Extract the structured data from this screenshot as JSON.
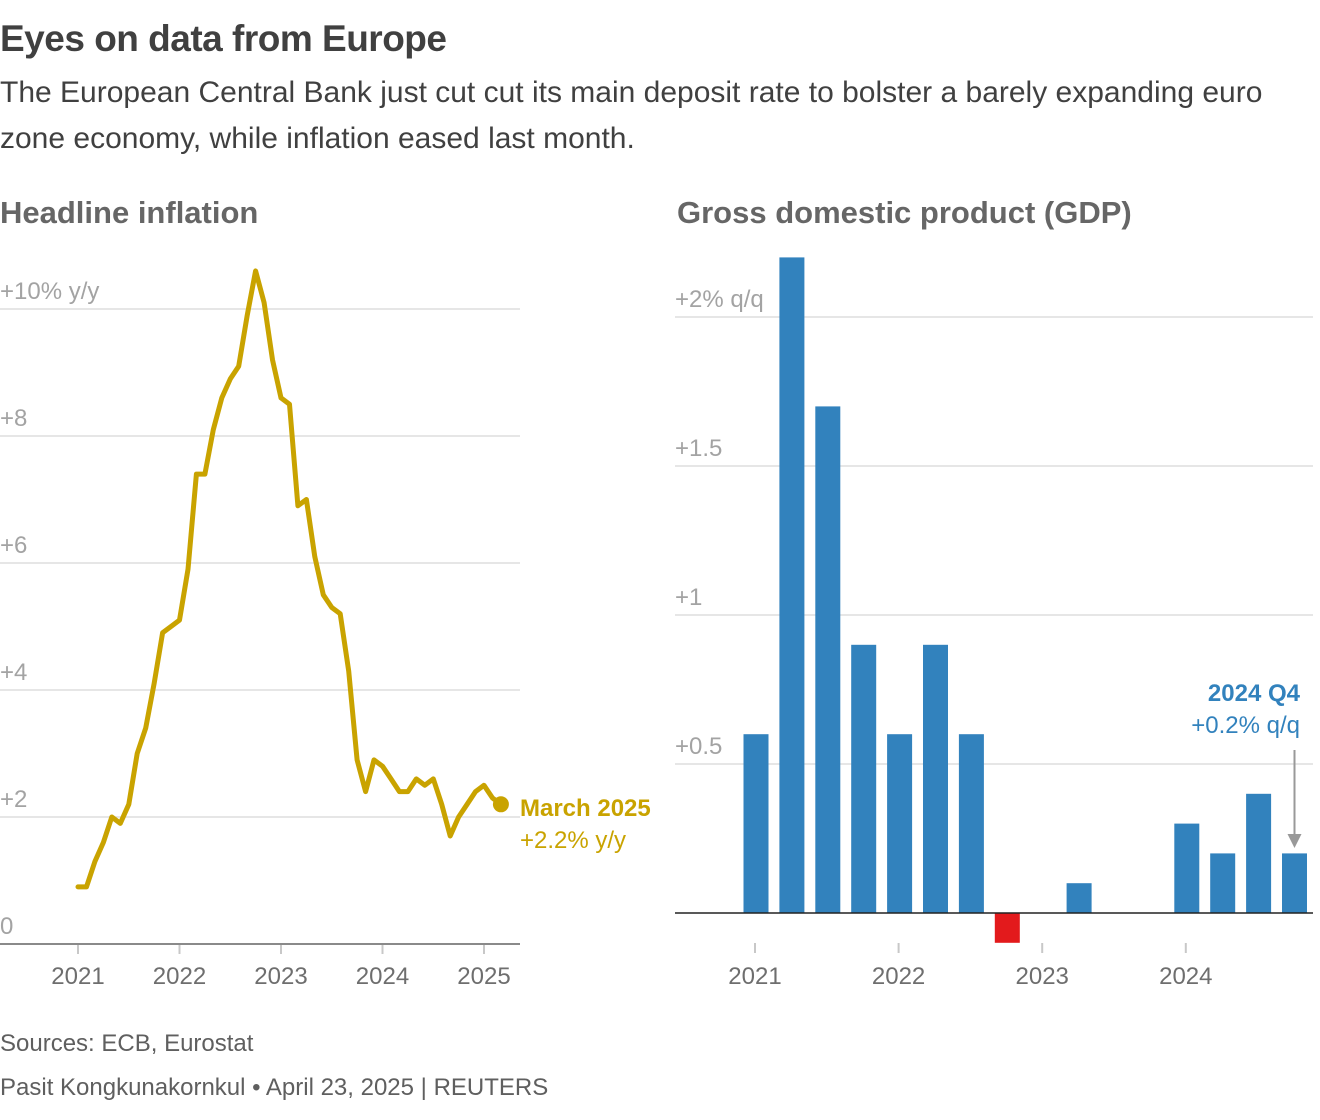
{
  "header": {
    "title": "Eyes on data from Europe",
    "subtitle": "The European Central Bank just cut cut its main deposit rate to bolster a barely expanding euro zone economy, while inflation eased last month."
  },
  "footer": {
    "sources": "Sources: ECB, Eurostat",
    "credit": "Pasit Kongkunakornkul • April 23, 2025 | REUTERS"
  },
  "colors": {
    "inflation_line": "#c9a300",
    "gdp_positive": "#3282bd",
    "gdp_negative": "#e31a1c",
    "annotation_arrow": "#999999"
  },
  "chart_data": [
    {
      "type": "line",
      "title": "Headline inflation",
      "xlabel": "",
      "ylabel": "% y/y",
      "ylim": [
        0,
        10
      ],
      "yticks": [
        0,
        2,
        4,
        6,
        8,
        10
      ],
      "ytick_labels": [
        "0",
        "+2",
        "+4",
        "+6",
        "+8",
        "+10% y/y"
      ],
      "xticks": [
        2021,
        2022,
        2023,
        2024,
        2025
      ],
      "xtick_labels": [
        "2021",
        "2022",
        "2023",
        "2024",
        "2025"
      ],
      "grid": true,
      "start": "2021-01",
      "frequency": "monthly",
      "series": [
        {
          "name": "Headline inflation",
          "values": [
            0.9,
            0.9,
            1.3,
            1.6,
            2.0,
            1.9,
            2.2,
            3.0,
            3.4,
            4.1,
            4.9,
            5.0,
            5.1,
            5.9,
            7.4,
            7.4,
            8.1,
            8.6,
            8.9,
            9.1,
            9.9,
            10.6,
            10.1,
            9.2,
            8.6,
            8.5,
            6.9,
            7.0,
            6.1,
            5.5,
            5.3,
            5.2,
            4.3,
            2.9,
            2.4,
            2.9,
            2.8,
            2.6,
            2.4,
            2.4,
            2.6,
            2.5,
            2.6,
            2.2,
            1.7,
            2.0,
            2.2,
            2.4,
            2.5,
            2.3,
            2.2
          ]
        }
      ],
      "annotation": {
        "label": "March 2025",
        "value_label": "+2.2% y/y"
      }
    },
    {
      "type": "bar",
      "title": "Gross domestic product (GDP)",
      "xlabel": "",
      "ylabel": "% q/q",
      "ylim": [
        -0.1,
        2.2
      ],
      "yticks": [
        0,
        0.5,
        1,
        1.5,
        2
      ],
      "ytick_labels": [
        "",
        "+0.5",
        "+1",
        "+1.5",
        "+2% q/q"
      ],
      "xtick_labels": [
        "2021",
        "2022",
        "2023",
        "2024"
      ],
      "grid": true,
      "categories": [
        "2021 Q1",
        "2021 Q2",
        "2021 Q3",
        "2021 Q4",
        "2022 Q1",
        "2022 Q2",
        "2022 Q3",
        "2022 Q4",
        "2023 Q1",
        "2023 Q2",
        "2023 Q3",
        "2023 Q4",
        "2024 Q1",
        "2024 Q2",
        "2024 Q3",
        "2024 Q4"
      ],
      "values": [
        0.6,
        2.2,
        1.7,
        0.9,
        0.6,
        0.9,
        0.6,
        -0.1,
        0.0,
        0.1,
        0.0,
        0.0,
        0.3,
        0.2,
        0.4,
        0.2
      ],
      "annotation": {
        "label": "2024 Q4",
        "value_label": "+0.2% q/q"
      }
    }
  ]
}
